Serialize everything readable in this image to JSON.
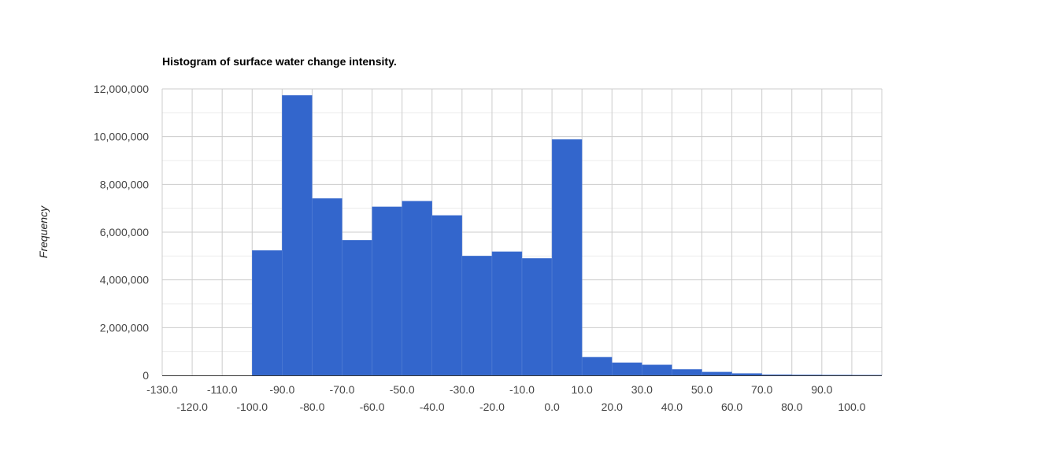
{
  "chart_data": {
    "type": "bar",
    "title": "Histogram of surface water change intensity.",
    "xlabel": "",
    "ylabel": "Frequency",
    "bin_width": 10,
    "bins": [
      {
        "start": -130,
        "end": -120,
        "value": 0
      },
      {
        "start": -120,
        "end": -110,
        "value": 0
      },
      {
        "start": -110,
        "end": -100,
        "value": 0
      },
      {
        "start": -100,
        "end": -90,
        "value": 5230000
      },
      {
        "start": -90,
        "end": -80,
        "value": 11730000
      },
      {
        "start": -80,
        "end": -70,
        "value": 7410000
      },
      {
        "start": -70,
        "end": -60,
        "value": 5660000
      },
      {
        "start": -60,
        "end": -50,
        "value": 7060000
      },
      {
        "start": -50,
        "end": -40,
        "value": 7300000
      },
      {
        "start": -40,
        "end": -30,
        "value": 6700000
      },
      {
        "start": -30,
        "end": -20,
        "value": 5000000
      },
      {
        "start": -20,
        "end": -10,
        "value": 5180000
      },
      {
        "start": -10,
        "end": 0,
        "value": 4900000
      },
      {
        "start": 0,
        "end": 10,
        "value": 9880000
      },
      {
        "start": 10,
        "end": 20,
        "value": 760000
      },
      {
        "start": 20,
        "end": 30,
        "value": 530000
      },
      {
        "start": 30,
        "end": 40,
        "value": 440000
      },
      {
        "start": 40,
        "end": 50,
        "value": 250000
      },
      {
        "start": 50,
        "end": 60,
        "value": 140000
      },
      {
        "start": 60,
        "end": 70,
        "value": 80000
      },
      {
        "start": 70,
        "end": 80,
        "value": 30000
      },
      {
        "start": 80,
        "end": 90,
        "value": 20000
      },
      {
        "start": 90,
        "end": 100,
        "value": 15000
      },
      {
        "start": 100,
        "end": 110,
        "value": 10000
      }
    ],
    "xlim": [
      -130,
      110
    ],
    "ylim": [
      0,
      12000000
    ],
    "x_ticks_upper": [
      "-130.0",
      "-110.0",
      "-90.0",
      "-70.0",
      "-50.0",
      "-30.0",
      "-10.0",
      "10.0",
      "30.0",
      "50.0",
      "70.0",
      "90.0"
    ],
    "x_ticks_lower": [
      "-120.0",
      "-100.0",
      "-80.0",
      "-60.0",
      "-40.0",
      "-20.0",
      "0.0",
      "20.0",
      "40.0",
      "60.0",
      "80.0",
      "100.0"
    ],
    "y_ticks": [
      "0",
      "2,000,000",
      "4,000,000",
      "6,000,000",
      "8,000,000",
      "10,000,000",
      "12,000,000"
    ],
    "grid": true,
    "legend": "none",
    "colors": {
      "bar": "#3366cc",
      "bar_edge": "#5b84d6",
      "grid_major": "#cccccc",
      "grid_minor": "#ebebeb",
      "baseline": "#333333"
    }
  }
}
